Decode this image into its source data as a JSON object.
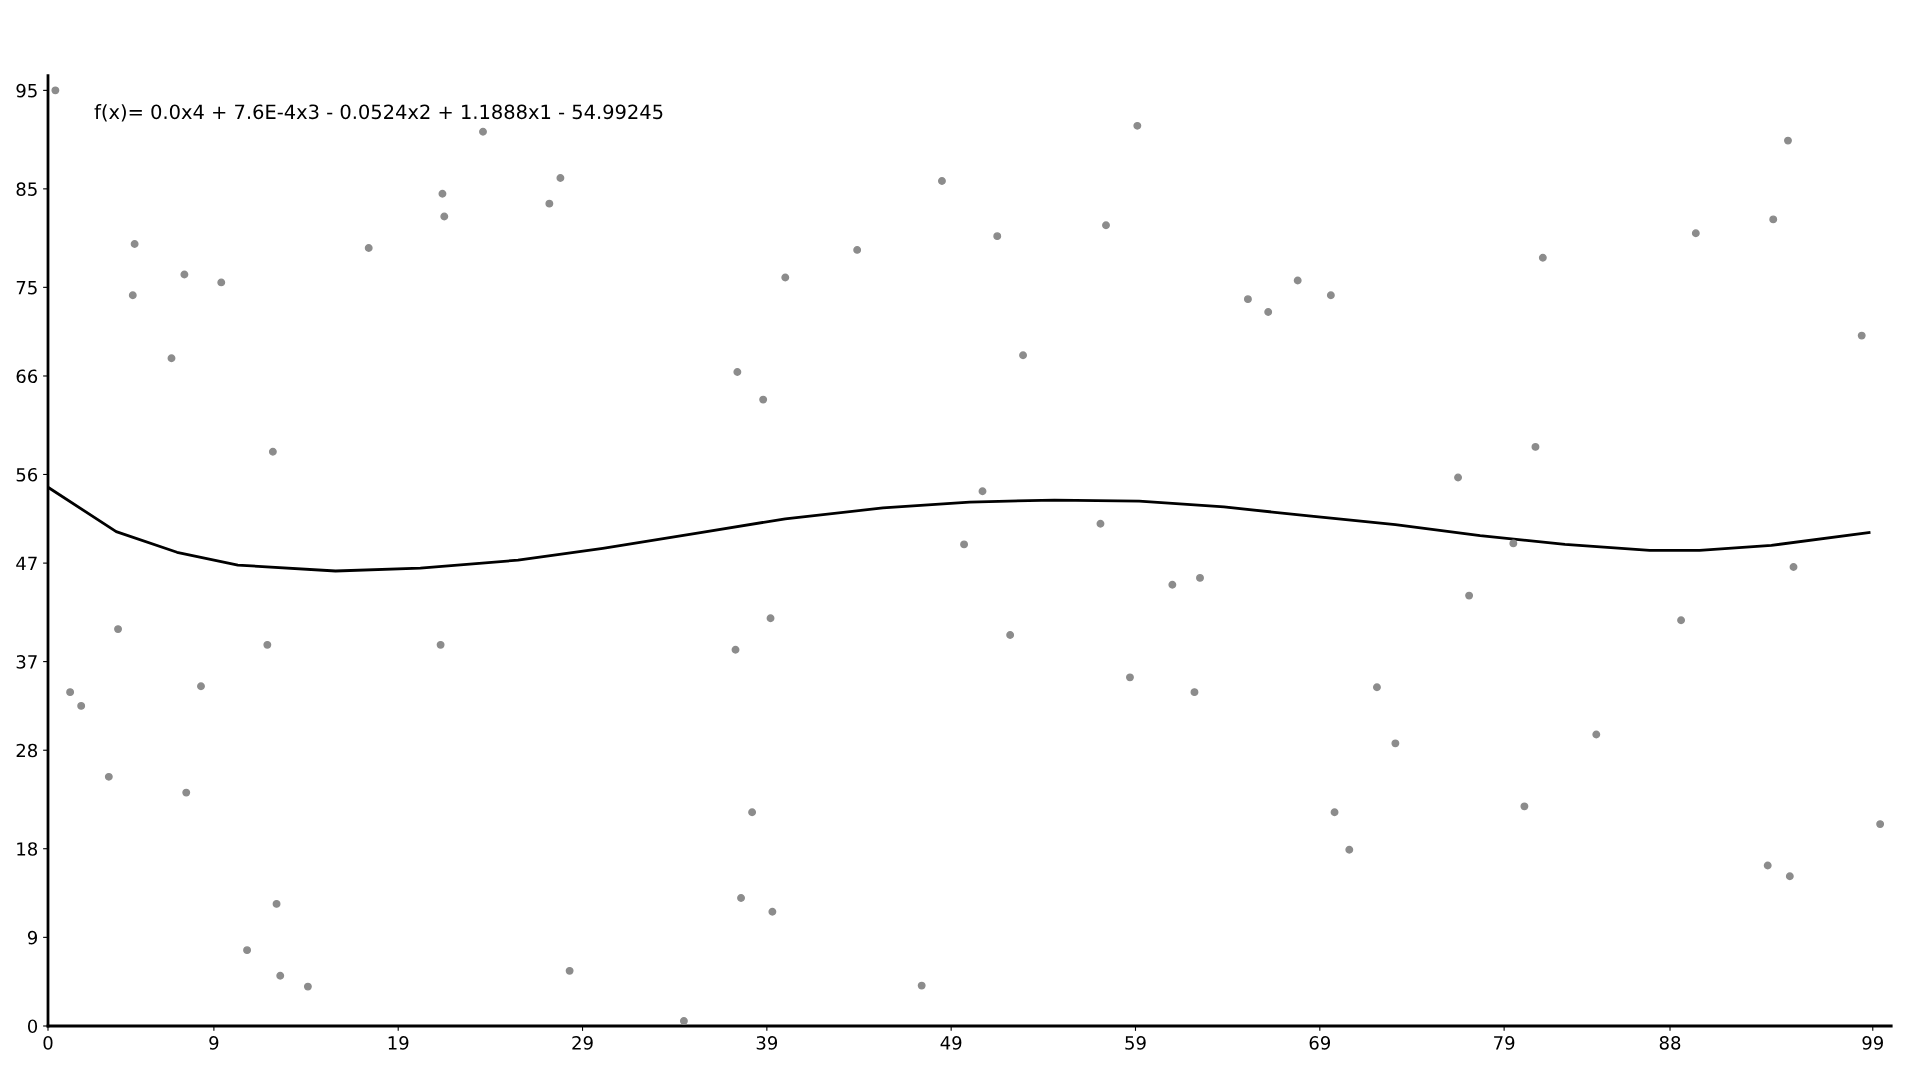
{
  "chart_data": {
    "type": "scatter",
    "annotations": [
      "f(x)= 0.0x4 + 7.6E-4x3 - 0.0524x2 + 1.1888x1 - 54.99245"
    ],
    "xlim": [
      0,
      100
    ],
    "ylim": [
      0,
      96.5
    ],
    "xticks": [
      0,
      9,
      19,
      29,
      39,
      49,
      59,
      69,
      79,
      88,
      99
    ],
    "yticks": [
      0,
      9,
      18,
      28,
      37,
      47,
      56,
      66,
      75,
      85,
      95
    ],
    "grid": false,
    "series": [
      {
        "color": "#8c8c8c",
        "marker": "circle",
        "x": [
          0.4,
          1.2,
          1.8,
          3.3,
          3.8,
          4.6,
          4.7,
          6.7,
          7.4,
          7.5,
          8.3,
          9.4,
          10.8,
          11.9,
          12.2,
          12.4,
          12.6,
          14.1,
          17.4,
          21.3,
          21.4,
          21.5,
          23.6,
          27.2,
          27.8,
          28.3,
          34.5,
          37.3,
          37.4,
          37.6,
          38.2,
          38.8,
          39.2,
          39.3,
          40.0,
          43.9,
          47.4,
          48.5,
          49.7,
          50.7,
          51.5,
          52.2,
          52.9,
          57.1,
          57.4,
          58.7,
          59.1,
          61.0,
          62.2,
          62.5,
          65.1,
          66.2,
          67.8,
          69.6,
          69.8,
          70.6,
          72.1,
          73.1,
          76.5,
          77.1,
          79.5,
          80.1,
          80.7,
          81.1,
          84.0,
          88.6,
          89.4,
          93.3,
          93.6,
          94.4,
          94.5,
          94.7,
          98.4,
          99.4
        ],
        "values": [
          95.0,
          33.9,
          32.5,
          25.3,
          40.3,
          74.2,
          79.4,
          67.8,
          76.3,
          23.7,
          34.5,
          75.5,
          7.7,
          38.7,
          58.3,
          12.4,
          5.1,
          4.0,
          79.0,
          38.7,
          84.5,
          82.2,
          90.8,
          83.5,
          86.1,
          5.6,
          0.5,
          38.2,
          66.4,
          13.0,
          21.7,
          63.6,
          41.4,
          11.6,
          76.0,
          78.8,
          4.1,
          85.8,
          48.9,
          54.3,
          80.2,
          39.7,
          68.1,
          51.0,
          81.3,
          35.4,
          91.4,
          44.8,
          33.9,
          45.5,
          73.8,
          72.5,
          75.7,
          74.2,
          21.7,
          17.9,
          34.4,
          28.7,
          55.7,
          43.7,
          49.0,
          22.3,
          58.8,
          78.0,
          29.6,
          41.2,
          80.5,
          16.3,
          81.9,
          89.9,
          15.2,
          46.6,
          70.1,
          20.5
        ]
      },
      {
        "type": "line",
        "color": "#000000",
        "marker": "none",
        "x": [
          0,
          3.7,
          7.0,
          10.3,
          15.6,
          20.2,
          25.5,
          30.1,
          35.4,
          40.0,
          45.3,
          50.0,
          54.6,
          59.2,
          63.8,
          68.4,
          73.1,
          77.7,
          82.3,
          86.9,
          89.6,
          93.5,
          98.8
        ],
        "values": [
          54.7,
          50.2,
          48.1,
          46.8,
          46.2,
          46.5,
          47.3,
          48.5,
          50.1,
          51.5,
          52.6,
          53.2,
          53.4,
          53.3,
          52.7,
          51.8,
          50.9,
          49.8,
          48.9,
          48.3,
          48.3,
          48.8,
          50.1
        ]
      }
    ]
  }
}
